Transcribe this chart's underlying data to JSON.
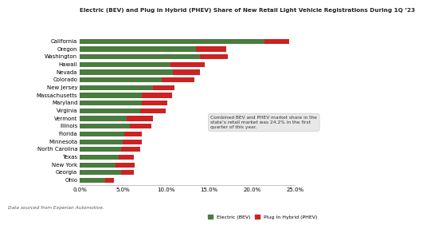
{
  "title": "Electric (BEV) and Plug in Hybrid (PHEV) Share of New Retail Light Vehicle Registrations During 1Q ’23",
  "states": [
    "California",
    "Oregon",
    "Washington",
    "Hawaii",
    "Nevada",
    "Colorado",
    "New Jersey",
    "Massachusetts",
    "Maryland",
    "Virginia",
    "Vermont",
    "Illinois",
    "Florida",
    "Minnesota",
    "North Carolina",
    "Texas",
    "New York",
    "Georgia",
    "Ohio"
  ],
  "bev": [
    21.5,
    13.5,
    14.0,
    10.5,
    10.8,
    9.5,
    8.5,
    7.2,
    7.2,
    7.0,
    5.5,
    5.8,
    5.2,
    5.0,
    4.8,
    4.5,
    4.2,
    4.8,
    3.0
  ],
  "phev": [
    2.8,
    3.5,
    3.2,
    4.0,
    3.2,
    3.8,
    2.5,
    3.5,
    3.0,
    3.0,
    3.0,
    2.5,
    2.0,
    2.2,
    2.2,
    1.8,
    2.2,
    1.5,
    1.0
  ],
  "bev_color": "#4a7c3f",
  "phev_color": "#cc2222",
  "bg_color": "#ffffff",
  "annotation_text": "Combined BEV and PHEV market share in the\nstate’s retail market was 24.2% in the first\nquarter of this year.",
  "footer": "Data sourced from Experian Automotive.",
  "xlim": [
    0,
    25
  ],
  "xtick_labels": [
    "0.0%",
    "5.0%",
    "10.0%",
    "15.0%",
    "20.0%",
    "25.0%"
  ],
  "xtick_vals": [
    0,
    5,
    10,
    15,
    20,
    25
  ]
}
